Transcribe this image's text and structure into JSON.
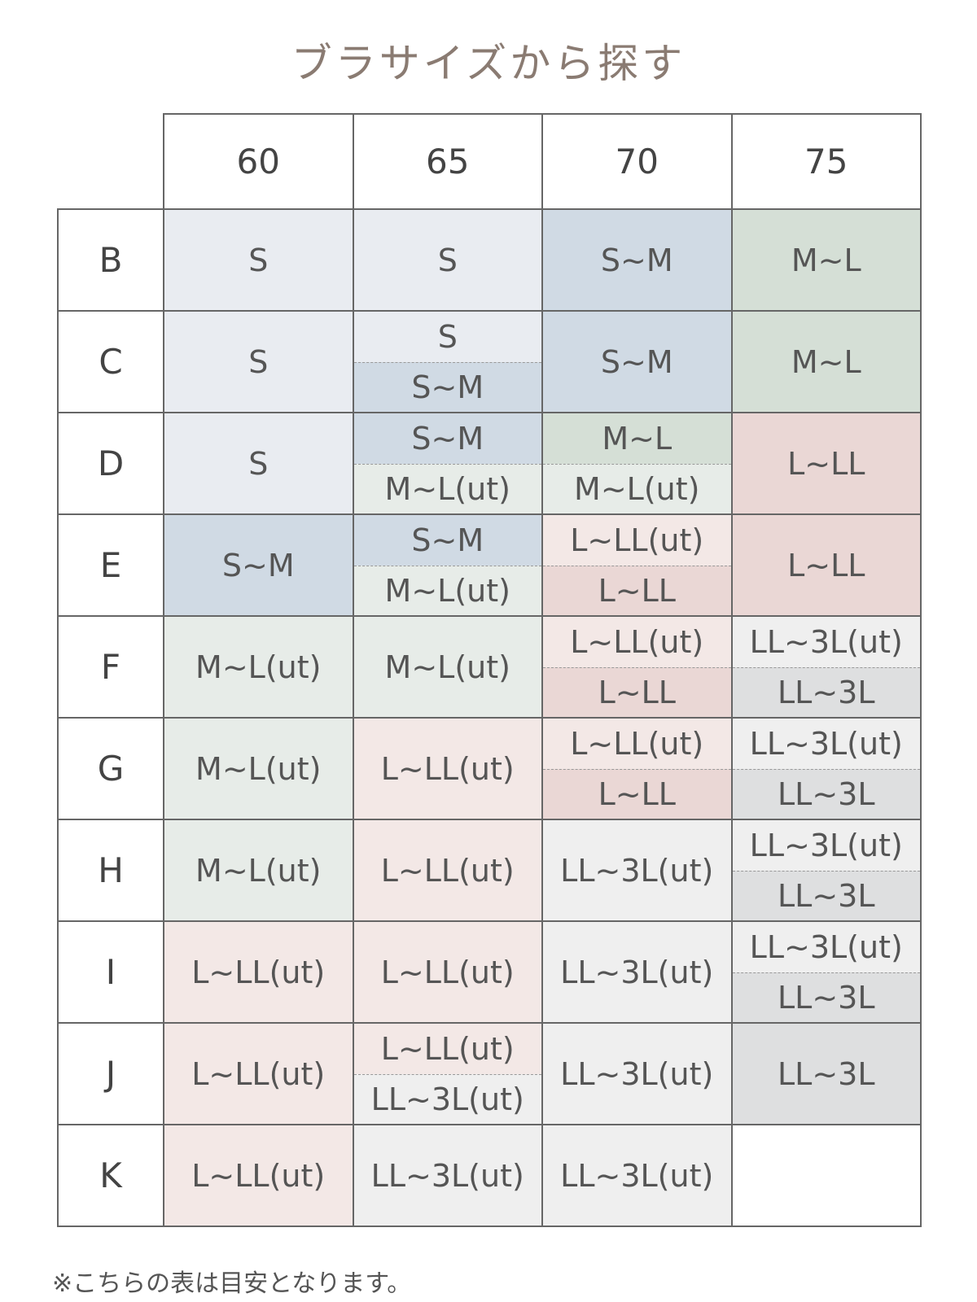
{
  "header": {
    "title": "ブラサイズから探す"
  },
  "table": {
    "columns": [
      "60",
      "65",
      "70",
      "75"
    ],
    "rows": [
      {
        "label": "B",
        "cells": [
          [
            {
              "text": "S",
              "color": "#e9ecf1"
            }
          ],
          [
            {
              "text": "S",
              "color": "#e9ecf1"
            }
          ],
          [
            {
              "text": "S~M",
              "color": "#d0dae4"
            }
          ],
          [
            {
              "text": "M~L",
              "color": "#d5dfd6"
            }
          ]
        ]
      },
      {
        "label": "C",
        "cells": [
          [
            {
              "text": "S",
              "color": "#e9ecf1"
            }
          ],
          [
            {
              "text": "S",
              "color": "#e9ecf1"
            },
            {
              "text": "S~M",
              "color": "#d0dae4"
            }
          ],
          [
            {
              "text": "S~M",
              "color": "#d0dae4"
            }
          ],
          [
            {
              "text": "M~L",
              "color": "#d5dfd6"
            }
          ]
        ]
      },
      {
        "label": "D",
        "cells": [
          [
            {
              "text": "S",
              "color": "#e9ecf1"
            }
          ],
          [
            {
              "text": "S~M",
              "color": "#d0dae4"
            },
            {
              "text": "M~L(ut)",
              "color": "#e7ece8"
            }
          ],
          [
            {
              "text": "M~L",
              "color": "#d5dfd6"
            },
            {
              "text": "M~L(ut)",
              "color": "#e7ece8"
            }
          ],
          [
            {
              "text": "L~LL",
              "color": "#ead7d5"
            }
          ]
        ]
      },
      {
        "label": "E",
        "cells": [
          [
            {
              "text": "S~M",
              "color": "#d0dae4"
            }
          ],
          [
            {
              "text": "S~M",
              "color": "#d0dae4"
            },
            {
              "text": "M~L(ut)",
              "color": "#e7ece8"
            }
          ],
          [
            {
              "text": "L~LL(ut)",
              "color": "#f3e8e6"
            },
            {
              "text": "L~LL",
              "color": "#ead7d5"
            }
          ],
          [
            {
              "text": "L~LL",
              "color": "#ead7d5"
            }
          ]
        ]
      },
      {
        "label": "F",
        "cells": [
          [
            {
              "text": "M~L(ut)",
              "color": "#e7ece8"
            }
          ],
          [
            {
              "text": "M~L(ut)",
              "color": "#e7ece8"
            }
          ],
          [
            {
              "text": "L~LL(ut)",
              "color": "#f3e8e6"
            },
            {
              "text": "L~LL",
              "color": "#ead7d5"
            }
          ],
          [
            {
              "text": "LL~3L(ut)",
              "color": "#efefef"
            },
            {
              "text": "LL~3L",
              "color": "#dedfe0"
            }
          ]
        ]
      },
      {
        "label": "G",
        "cells": [
          [
            {
              "text": "M~L(ut)",
              "color": "#e7ece8"
            }
          ],
          [
            {
              "text": "L~LL(ut)",
              "color": "#f3e8e6"
            }
          ],
          [
            {
              "text": "L~LL(ut)",
              "color": "#f3e8e6"
            },
            {
              "text": "L~LL",
              "color": "#ead7d5"
            }
          ],
          [
            {
              "text": "LL~3L(ut)",
              "color": "#efefef"
            },
            {
              "text": "LL~3L",
              "color": "#dedfe0"
            }
          ]
        ]
      },
      {
        "label": "H",
        "cells": [
          [
            {
              "text": "M~L(ut)",
              "color": "#e7ece8"
            }
          ],
          [
            {
              "text": "L~LL(ut)",
              "color": "#f3e8e6"
            }
          ],
          [
            {
              "text": "LL~3L(ut)",
              "color": "#efefef"
            }
          ],
          [
            {
              "text": "LL~3L(ut)",
              "color": "#efefef"
            },
            {
              "text": "LL~3L",
              "color": "#dedfe0"
            }
          ]
        ]
      },
      {
        "label": "I",
        "cells": [
          [
            {
              "text": "L~LL(ut)",
              "color": "#f3e8e6"
            }
          ],
          [
            {
              "text": "L~LL(ut)",
              "color": "#f3e8e6"
            }
          ],
          [
            {
              "text": "LL~3L(ut)",
              "color": "#efefef"
            }
          ],
          [
            {
              "text": "LL~3L(ut)",
              "color": "#efefef"
            },
            {
              "text": "LL~3L",
              "color": "#dedfe0"
            }
          ]
        ]
      },
      {
        "label": "J",
        "cells": [
          [
            {
              "text": "L~LL(ut)",
              "color": "#f3e8e6"
            }
          ],
          [
            {
              "text": "L~LL(ut)",
              "color": "#f3e8e6"
            },
            {
              "text": "LL~3L(ut)",
              "color": "#efefef"
            }
          ],
          [
            {
              "text": "LL~3L(ut)",
              "color": "#efefef"
            }
          ],
          [
            {
              "text": "LL~3L",
              "color": "#dedfe0"
            }
          ]
        ]
      },
      {
        "label": "K",
        "cells": [
          [
            {
              "text": "L~LL(ut)",
              "color": "#f3e8e6"
            }
          ],
          [
            {
              "text": "LL~3L(ut)",
              "color": "#efefef"
            }
          ],
          [
            {
              "text": "LL~3L(ut)",
              "color": "#efefef"
            }
          ],
          []
        ]
      }
    ]
  },
  "footnote": "※こちらの表は目安となります。"
}
